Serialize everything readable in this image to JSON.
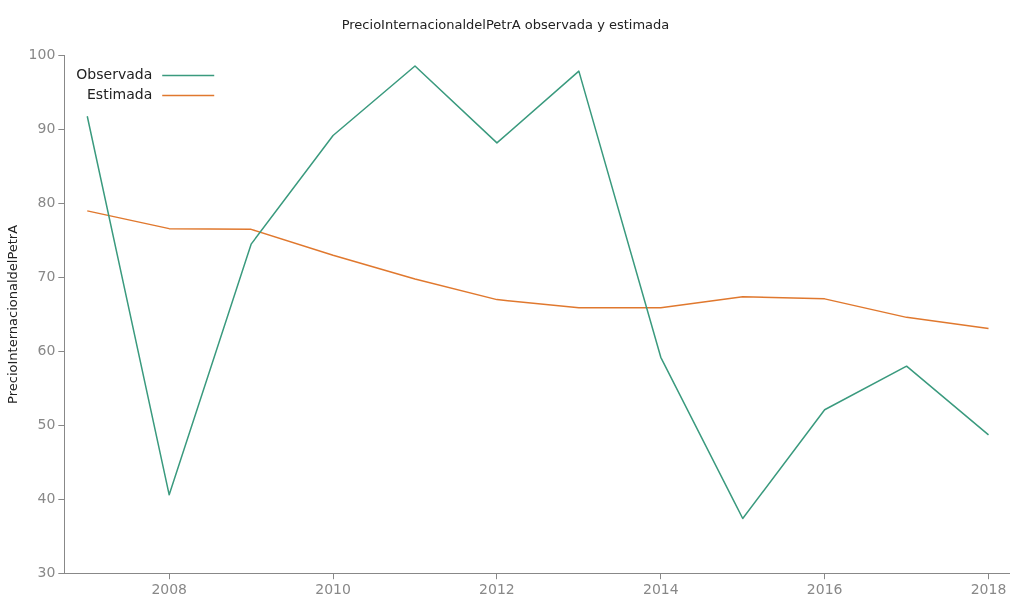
{
  "chart_data": {
    "type": "line",
    "title": "PrecioInternacionaldelPetrA observada y estimada",
    "ylabel": "PrecioInternacionaldelPetrA",
    "x": [
      2007,
      2008,
      2009,
      2010,
      2011,
      2012,
      2013,
      2014,
      2015,
      2016,
      2017,
      2018
    ],
    "series": [
      {
        "name": "Observada",
        "color": "#3a9a7e",
        "values": [
          91.8,
          40.6,
          74.5,
          89.2,
          98.6,
          88.2,
          97.9,
          59.2,
          37.4,
          52.1,
          58.0,
          48.7
        ]
      },
      {
        "name": "Estimada",
        "color": "#e0782e",
        "values": [
          79.0,
          76.6,
          76.5,
          73.0,
          69.8,
          67.0,
          65.9,
          65.9,
          67.4,
          67.1,
          64.6,
          63.1
        ]
      }
    ],
    "xlim": [
      2006.72,
      2018.25
    ],
    "xticks": [
      2008,
      2010,
      2012,
      2014,
      2016,
      2018
    ],
    "ylim": [
      30,
      100
    ],
    "yticks": [
      30,
      40,
      50,
      60,
      70,
      80,
      90,
      100
    ],
    "grid": false,
    "legend": "top left",
    "marker": "none",
    "line_style": "solid"
  }
}
